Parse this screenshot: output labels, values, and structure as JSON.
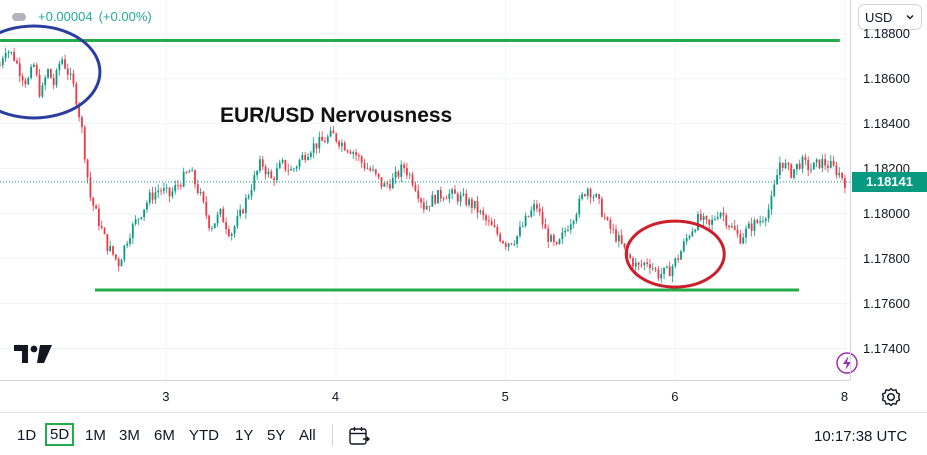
{
  "header": {
    "change_abs": "+0.00004",
    "change_pct": "(+0.00%)"
  },
  "currency_selector": {
    "label": "USD"
  },
  "chart_data": {
    "type": "candlestick",
    "title": "EUR/USD Nervousness",
    "current_price": "1.18141",
    "y_ticks": [
      "1.18800",
      "1.18600",
      "1.18400",
      "1.18200",
      "1.18000",
      "1.17800",
      "1.17600",
      "1.17400"
    ],
    "y_tick_values": [
      1.188,
      1.186,
      1.184,
      1.182,
      1.18,
      1.178,
      1.176,
      1.174
    ],
    "ylim": [
      1.1726,
      1.1895
    ],
    "x_ticks": [
      "3",
      "4",
      "5",
      "6",
      "8"
    ],
    "x_tick_values": [
      3,
      4,
      5,
      6,
      7
    ],
    "xlim": [
      2.02,
      7.03
    ],
    "resistance_level": 1.1877,
    "support_level": 1.1766,
    "support_x_range": [
      2.58,
      6.73
    ],
    "resistance_x_range": [
      2.02,
      6.97
    ],
    "price_path": [
      [
        2.02,
        1.1866
      ],
      [
        2.05,
        1.1874
      ],
      [
        2.1,
        1.187
      ],
      [
        2.14,
        1.1863
      ],
      [
        2.18,
        1.1858
      ],
      [
        2.22,
        1.1866
      ],
      [
        2.26,
        1.1852
      ],
      [
        2.3,
        1.1864
      ],
      [
        2.34,
        1.1857
      ],
      [
        2.38,
        1.187
      ],
      [
        2.42,
        1.1863
      ],
      [
        2.46,
        1.1855
      ],
      [
        2.5,
        1.1839
      ],
      [
        2.55,
        1.1808
      ],
      [
        2.6,
        1.1797
      ],
      [
        2.65,
        1.1786
      ],
      [
        2.72,
        1.1778
      ],
      [
        2.78,
        1.1791
      ],
      [
        2.84,
        1.1799
      ],
      [
        2.9,
        1.1807
      ],
      [
        2.96,
        1.1811
      ],
      [
        3.02,
        1.1808
      ],
      [
        3.08,
        1.1814
      ],
      [
        3.14,
        1.1819
      ],
      [
        3.2,
        1.1808
      ],
      [
        3.26,
        1.1794
      ],
      [
        3.32,
        1.18
      ],
      [
        3.38,
        1.1791
      ],
      [
        3.44,
        1.18
      ],
      [
        3.5,
        1.1812
      ],
      [
        3.56,
        1.1823
      ],
      [
        3.62,
        1.1815
      ],
      [
        3.68,
        1.1822
      ],
      [
        3.74,
        1.1819
      ],
      [
        3.8,
        1.1825
      ],
      [
        3.86,
        1.183
      ],
      [
        3.92,
        1.1832
      ],
      [
        3.98,
        1.1835
      ],
      [
        4.04,
        1.1831
      ],
      [
        4.1,
        1.1828
      ],
      [
        4.16,
        1.1822
      ],
      [
        4.22,
        1.1818
      ],
      [
        4.28,
        1.1812
      ],
      [
        4.34,
        1.1815
      ],
      [
        4.4,
        1.1821
      ],
      [
        4.46,
        1.1814
      ],
      [
        4.52,
        1.1803
      ],
      [
        4.58,
        1.1807
      ],
      [
        4.64,
        1.1809
      ],
      [
        4.7,
        1.1808
      ],
      [
        4.76,
        1.1806
      ],
      [
        4.82,
        1.1803
      ],
      [
        4.88,
        1.1797
      ],
      [
        4.94,
        1.1792
      ],
      [
        5.0,
        1.1787
      ],
      [
        5.06,
        1.1789
      ],
      [
        5.12,
        1.1797
      ],
      [
        5.18,
        1.1804
      ],
      [
        5.24,
        1.1791
      ],
      [
        5.3,
        1.1784
      ],
      [
        5.36,
        1.1794
      ],
      [
        5.42,
        1.1802
      ],
      [
        5.48,
        1.1812
      ],
      [
        5.54,
        1.1806
      ],
      [
        5.6,
        1.1795
      ],
      [
        5.66,
        1.1789
      ],
      [
        5.72,
        1.1781
      ],
      [
        5.78,
        1.1776
      ],
      [
        5.84,
        1.1779
      ],
      [
        5.9,
        1.1773
      ],
      [
        5.96,
        1.1774
      ],
      [
        6.02,
        1.1781
      ],
      [
        6.08,
        1.1791
      ],
      [
        6.14,
        1.1798
      ],
      [
        6.2,
        1.1794
      ],
      [
        6.26,
        1.1802
      ],
      [
        6.32,
        1.1795
      ],
      [
        6.38,
        1.1789
      ],
      [
        6.44,
        1.1794
      ],
      [
        6.5,
        1.1797
      ],
      [
        6.56,
        1.1803
      ],
      [
        6.62,
        1.1824
      ],
      [
        6.68,
        1.1818
      ],
      [
        6.74,
        1.1823
      ],
      [
        6.8,
        1.182
      ],
      [
        6.86,
        1.1823
      ],
      [
        6.92,
        1.1821
      ],
      [
        6.98,
        1.1817
      ],
      [
        7.0,
        1.18141
      ]
    ],
    "annotations": {
      "blue_circle_center": [
        2.22,
        1.1863
      ],
      "red_circle_center": [
        6.0,
        1.1782
      ]
    },
    "colors": {
      "up": "#089981",
      "down": "#f23645",
      "level_line": "#22ab4a",
      "blue_circle": "#2b3d9e",
      "red_circle": "#cc1f2a"
    }
  },
  "time_axis_settings_icon": "gear-icon",
  "timeframes": [
    "1D",
    "5D",
    "1M",
    "3M",
    "6M",
    "YTD",
    "1Y",
    "5Y",
    "All"
  ],
  "active_timeframe": "5D",
  "clock": "10:17:38 UTC"
}
